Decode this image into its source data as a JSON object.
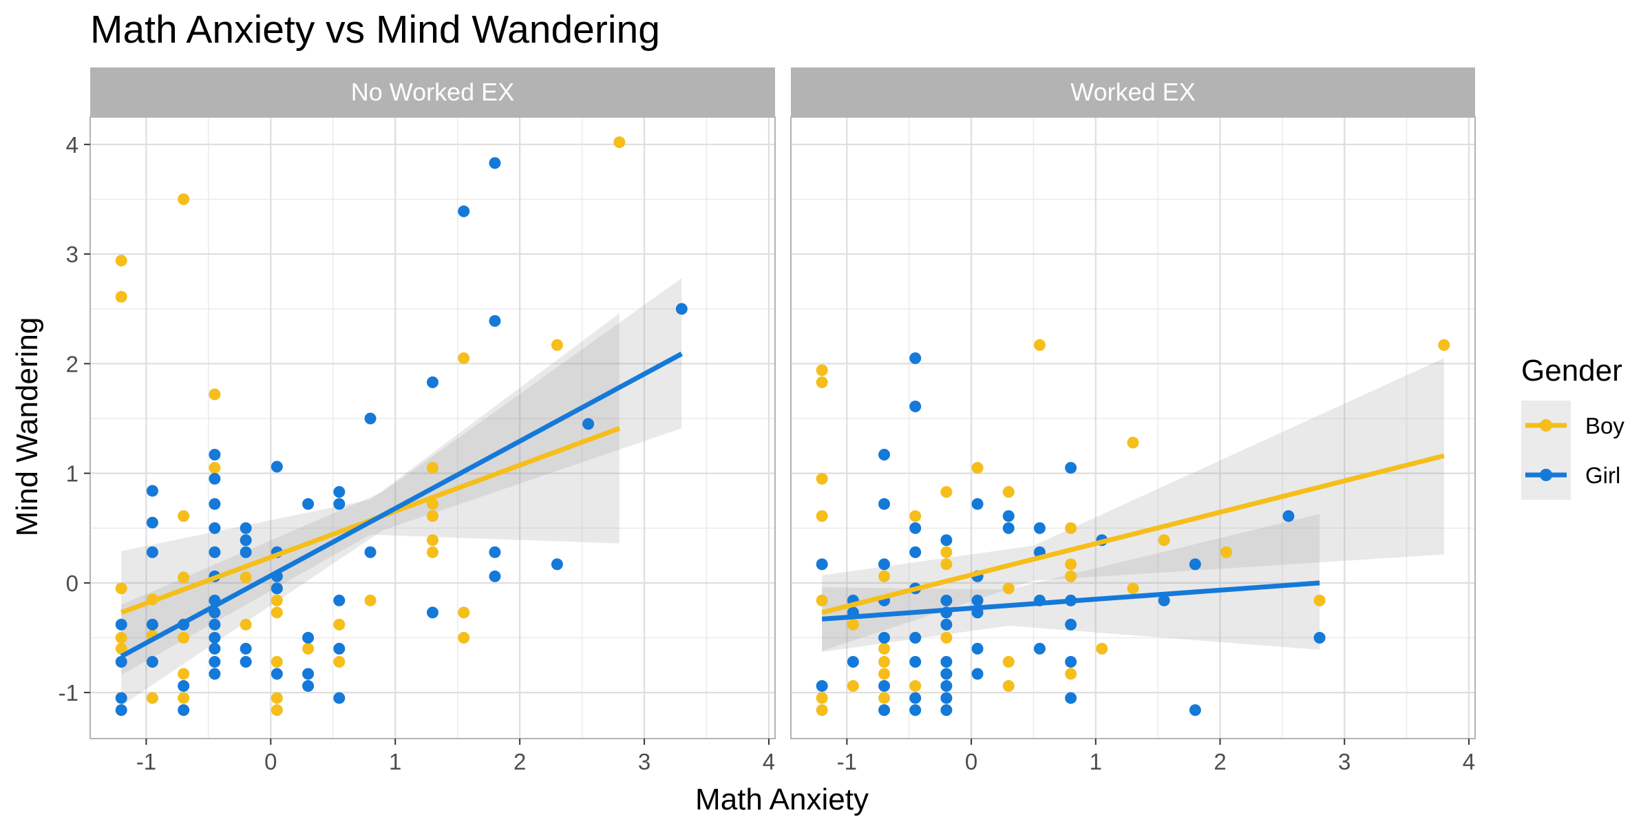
{
  "chart_data": {
    "type": "scatter",
    "title": "Math Anxiety vs Mind Wandering",
    "xlabel": "Math Anxiety",
    "ylabel": "Mind Wandering",
    "xlim": [
      -1.45,
      4.05
    ],
    "ylim": [
      -1.42,
      4.25
    ],
    "x_ticks": [
      -1,
      0,
      1,
      2,
      3,
      4
    ],
    "y_ticks": [
      -1,
      0,
      1,
      2,
      3,
      4
    ],
    "grid": true,
    "legend": {
      "title": "Gender",
      "position": "right",
      "entries": [
        {
          "label": "Boy",
          "color": "#F5BE1A"
        },
        {
          "label": "Girl",
          "color": "#1479D9"
        }
      ]
    },
    "colors": {
      "Boy": "#F5BE1A",
      "Girl": "#1479D9"
    },
    "panels": [
      {
        "label": "No Worked EX",
        "series": [
          {
            "group": "Boy",
            "points": [
              [
                -1.2,
                2.94
              ],
              [
                -1.2,
                2.61
              ],
              [
                -1.2,
                -0.05
              ],
              [
                -1.2,
                -0.5
              ],
              [
                -1.2,
                -0.6
              ],
              [
                -0.95,
                -0.15
              ],
              [
                -0.95,
                -1.05
              ],
              [
                -0.95,
                -0.48
              ],
              [
                -0.7,
                3.5
              ],
              [
                -0.7,
                0.61
              ],
              [
                -0.7,
                0.05
              ],
              [
                -0.7,
                -0.5
              ],
              [
                -0.7,
                -0.83
              ],
              [
                -0.7,
                -1.05
              ],
              [
                -0.45,
                1.72
              ],
              [
                -0.45,
                1.05
              ],
              [
                -0.2,
                0.05
              ],
              [
                -0.2,
                -0.38
              ],
              [
                0.05,
                -0.16
              ],
              [
                0.05,
                -0.27
              ],
              [
                0.05,
                -0.72
              ],
              [
                0.05,
                -1.05
              ],
              [
                0.05,
                -1.16
              ],
              [
                0.3,
                -0.6
              ],
              [
                0.55,
                -0.38
              ],
              [
                0.55,
                -0.72
              ],
              [
                0.8,
                -0.16
              ],
              [
                1.3,
                1.05
              ],
              [
                1.3,
                0.72
              ],
              [
                1.3,
                0.61
              ],
              [
                1.3,
                0.39
              ],
              [
                1.3,
                0.28
              ],
              [
                1.55,
                2.05
              ],
              [
                1.55,
                -0.27
              ],
              [
                1.55,
                -0.5
              ],
              [
                2.3,
                2.17
              ],
              [
                2.8,
                4.02
              ]
            ],
            "trend": {
              "x": [
                -1.2,
                2.8
              ],
              "y": [
                -0.27,
                1.41
              ]
            },
            "band": {
              "x": [
                -1.2,
                0.8,
                2.8
              ],
              "lo": [
                -0.84,
                0.44,
                0.36
              ],
              "hi": [
                0.29,
                0.76,
                2.46
              ]
            }
          },
          {
            "group": "Girl",
            "points": [
              [
                -1.2,
                -0.38
              ],
              [
                -1.2,
                -0.72
              ],
              [
                -1.2,
                -1.05
              ],
              [
                -1.2,
                -1.16
              ],
              [
                -0.95,
                0.84
              ],
              [
                -0.95,
                0.55
              ],
              [
                -0.95,
                0.28
              ],
              [
                -0.95,
                -0.38
              ],
              [
                -0.95,
                -0.72
              ],
              [
                -0.7,
                -0.38
              ],
              [
                -0.7,
                -0.94
              ],
              [
                -0.7,
                -1.16
              ],
              [
                -0.45,
                1.17
              ],
              [
                -0.45,
                0.95
              ],
              [
                -0.45,
                0.72
              ],
              [
                -0.45,
                0.5
              ],
              [
                -0.45,
                0.28
              ],
              [
                -0.45,
                0.06
              ],
              [
                -0.45,
                -0.16
              ],
              [
                -0.45,
                -0.27
              ],
              [
                -0.45,
                -0.38
              ],
              [
                -0.45,
                -0.5
              ],
              [
                -0.45,
                -0.6
              ],
              [
                -0.45,
                -0.72
              ],
              [
                -0.45,
                -0.83
              ],
              [
                -0.2,
                0.5
              ],
              [
                -0.2,
                0.39
              ],
              [
                -0.2,
                0.28
              ],
              [
                -0.2,
                -0.6
              ],
              [
                -0.2,
                -0.72
              ],
              [
                0.05,
                1.06
              ],
              [
                0.05,
                0.28
              ],
              [
                0.05,
                0.06
              ],
              [
                0.05,
                -0.05
              ],
              [
                0.05,
                -0.83
              ],
              [
                0.3,
                0.72
              ],
              [
                0.3,
                -0.5
              ],
              [
                0.3,
                -0.83
              ],
              [
                0.3,
                -0.94
              ],
              [
                0.55,
                0.83
              ],
              [
                0.55,
                0.72
              ],
              [
                0.55,
                -0.16
              ],
              [
                0.55,
                -0.6
              ],
              [
                0.55,
                -1.05
              ],
              [
                0.8,
                1.5
              ],
              [
                0.8,
                0.28
              ],
              [
                1.3,
                1.83
              ],
              [
                1.3,
                -0.27
              ],
              [
                1.55,
                3.39
              ],
              [
                1.8,
                3.83
              ],
              [
                1.8,
                2.39
              ],
              [
                1.8,
                0.28
              ],
              [
                1.8,
                0.06
              ],
              [
                2.3,
                0.17
              ],
              [
                2.55,
                1.45
              ],
              [
                3.3,
                2.5
              ]
            ],
            "trend": {
              "x": [
                -1.2,
                3.3
              ],
              "y": [
                -0.67,
                2.09
              ]
            },
            "band": {
              "x": [
                -1.2,
                0.9,
                3.3
              ],
              "lo": [
                -1.12,
                0.48,
                1.41
              ],
              "hi": [
                -0.2,
                0.83,
                2.78
              ]
            }
          }
        ]
      },
      {
        "label": "Worked EX",
        "series": [
          {
            "group": "Boy",
            "points": [
              [
                -1.2,
                1.94
              ],
              [
                -1.2,
                1.83
              ],
              [
                -1.2,
                0.95
              ],
              [
                -1.2,
                0.61
              ],
              [
                -1.2,
                -0.16
              ],
              [
                -1.2,
                -1.05
              ],
              [
                -1.2,
                -1.16
              ],
              [
                -0.95,
                -0.38
              ],
              [
                -0.95,
                -0.94
              ],
              [
                -0.7,
                0.06
              ],
              [
                -0.7,
                -0.6
              ],
              [
                -0.7,
                -0.72
              ],
              [
                -0.7,
                -0.83
              ],
              [
                -0.7,
                -1.05
              ],
              [
                -0.45,
                0.61
              ],
              [
                -0.45,
                -0.5
              ],
              [
                -0.45,
                -0.94
              ],
              [
                -0.2,
                0.83
              ],
              [
                -0.2,
                0.28
              ],
              [
                -0.2,
                0.17
              ],
              [
                -0.2,
                -0.5
              ],
              [
                0.05,
                1.05
              ],
              [
                0.3,
                0.83
              ],
              [
                0.3,
                -0.05
              ],
              [
                0.3,
                -0.72
              ],
              [
                0.3,
                -0.94
              ],
              [
                0.55,
                2.17
              ],
              [
                0.8,
                0.5
              ],
              [
                0.8,
                0.17
              ],
              [
                0.8,
                0.06
              ],
              [
                0.8,
                -0.83
              ],
              [
                1.05,
                -0.6
              ],
              [
                1.3,
                1.28
              ],
              [
                1.3,
                -0.05
              ],
              [
                1.55,
                0.39
              ],
              [
                2.05,
                0.28
              ],
              [
                2.8,
                -0.16
              ],
              [
                3.8,
                2.17
              ]
            ],
            "trend": {
              "x": [
                -1.2,
                3.8
              ],
              "y": [
                -0.27,
                1.16
              ]
            },
            "band": {
              "x": [
                -1.2,
                0.5,
                3.8
              ],
              "lo": [
                -0.62,
                0.02,
                0.26
              ],
              "hi": [
                0.07,
                0.34,
                2.05
              ]
            }
          },
          {
            "group": "Girl",
            "points": [
              [
                -1.2,
                0.17
              ],
              [
                -1.2,
                -0.94
              ],
              [
                -0.95,
                -0.16
              ],
              [
                -0.95,
                -0.27
              ],
              [
                -0.95,
                -0.72
              ],
              [
                -0.7,
                1.17
              ],
              [
                -0.7,
                0.72
              ],
              [
                -0.7,
                0.17
              ],
              [
                -0.7,
                -0.16
              ],
              [
                -0.7,
                -0.5
              ],
              [
                -0.7,
                -0.94
              ],
              [
                -0.7,
                -1.16
              ],
              [
                -0.45,
                2.05
              ],
              [
                -0.45,
                1.61
              ],
              [
                -0.45,
                0.5
              ],
              [
                -0.45,
                0.28
              ],
              [
                -0.45,
                -0.05
              ],
              [
                -0.45,
                -0.5
              ],
              [
                -0.45,
                -0.72
              ],
              [
                -0.45,
                -1.05
              ],
              [
                -0.45,
                -1.16
              ],
              [
                -0.2,
                0.39
              ],
              [
                -0.2,
                -0.16
              ],
              [
                -0.2,
                -0.27
              ],
              [
                -0.2,
                -0.38
              ],
              [
                -0.2,
                -0.72
              ],
              [
                -0.2,
                -0.83
              ],
              [
                -0.2,
                -0.94
              ],
              [
                -0.2,
                -1.05
              ],
              [
                -0.2,
                -1.16
              ],
              [
                0.05,
                0.72
              ],
              [
                0.05,
                0.06
              ],
              [
                0.05,
                -0.16
              ],
              [
                0.05,
                -0.27
              ],
              [
                0.05,
                -0.6
              ],
              [
                0.05,
                -0.83
              ],
              [
                0.3,
                0.61
              ],
              [
                0.3,
                0.5
              ],
              [
                0.55,
                0.5
              ],
              [
                0.55,
                0.28
              ],
              [
                0.55,
                -0.16
              ],
              [
                0.55,
                -0.6
              ],
              [
                0.8,
                1.05
              ],
              [
                0.8,
                -0.16
              ],
              [
                0.8,
                -0.38
              ],
              [
                0.8,
                -0.72
              ],
              [
                0.8,
                -1.05
              ],
              [
                1.05,
                0.39
              ],
              [
                1.55,
                -0.16
              ],
              [
                1.8,
                0.17
              ],
              [
                1.8,
                -1.16
              ],
              [
                2.55,
                0.61
              ],
              [
                2.8,
                -0.5
              ]
            ],
            "trend": {
              "x": [
                -1.2,
                2.8
              ],
              "y": [
                -0.33,
                0.0
              ]
            },
            "band": {
              "x": [
                -1.2,
                0.3,
                2.8
              ],
              "lo": [
                -0.63,
                -0.39,
                -0.61
              ],
              "hi": [
                -0.04,
                -0.06,
                0.63
              ]
            }
          }
        ]
      }
    ]
  }
}
